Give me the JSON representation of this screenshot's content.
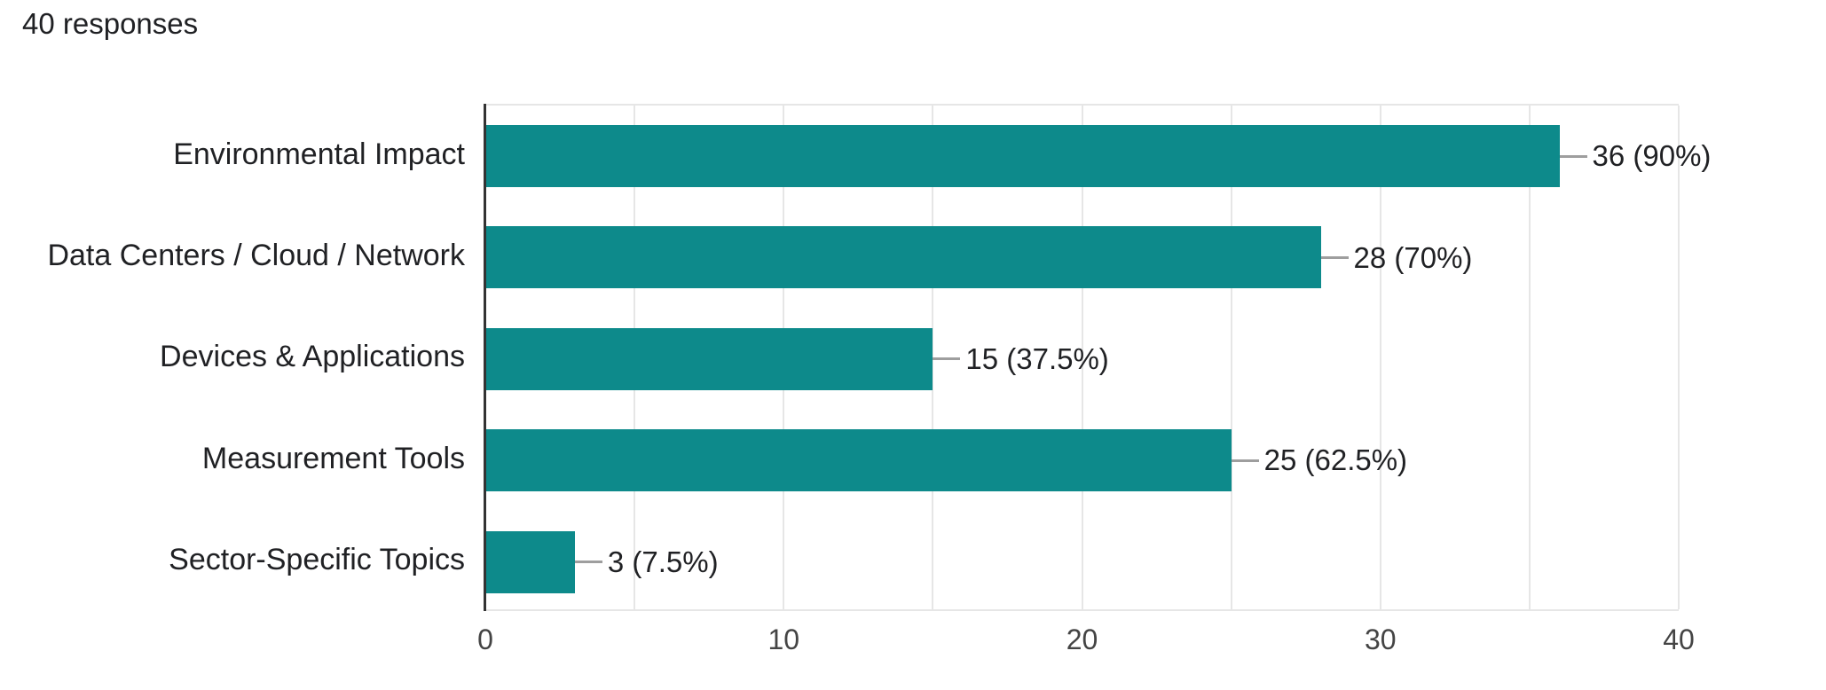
{
  "header": {
    "responses_label": "40 responses"
  },
  "chart_data": {
    "type": "bar",
    "orientation": "horizontal",
    "title": "",
    "categories": [
      "Environmental Impact",
      "Data Centers / Cloud / Network",
      "Devices & Applications",
      "Measurement Tools",
      "Sector-Specific Topics"
    ],
    "values": [
      36,
      28,
      15,
      25,
      3
    ],
    "value_labels": [
      "36 (90%)",
      "28 (70%)",
      "15 (37.5%)",
      "25 (62.5%)",
      "3 (7.5%)"
    ],
    "percentages": [
      90,
      70,
      37.5,
      62.5,
      7.5
    ],
    "total_responses": 40,
    "xlim": [
      0,
      40
    ],
    "x_ticks": [
      "0",
      "10",
      "20",
      "30",
      "40"
    ],
    "x_tick_values": [
      0,
      10,
      20,
      30,
      40
    ],
    "gridline_step": 5,
    "grid_on": true,
    "legend_position": "none",
    "colors": {
      "bar": "#0d8a8b",
      "grid": "#e6e6e6",
      "axis_line": "#333333",
      "connector": "#9e9e9e",
      "category_text": "#202124",
      "value_text": "#202124",
      "tick_text": "#444444"
    }
  }
}
